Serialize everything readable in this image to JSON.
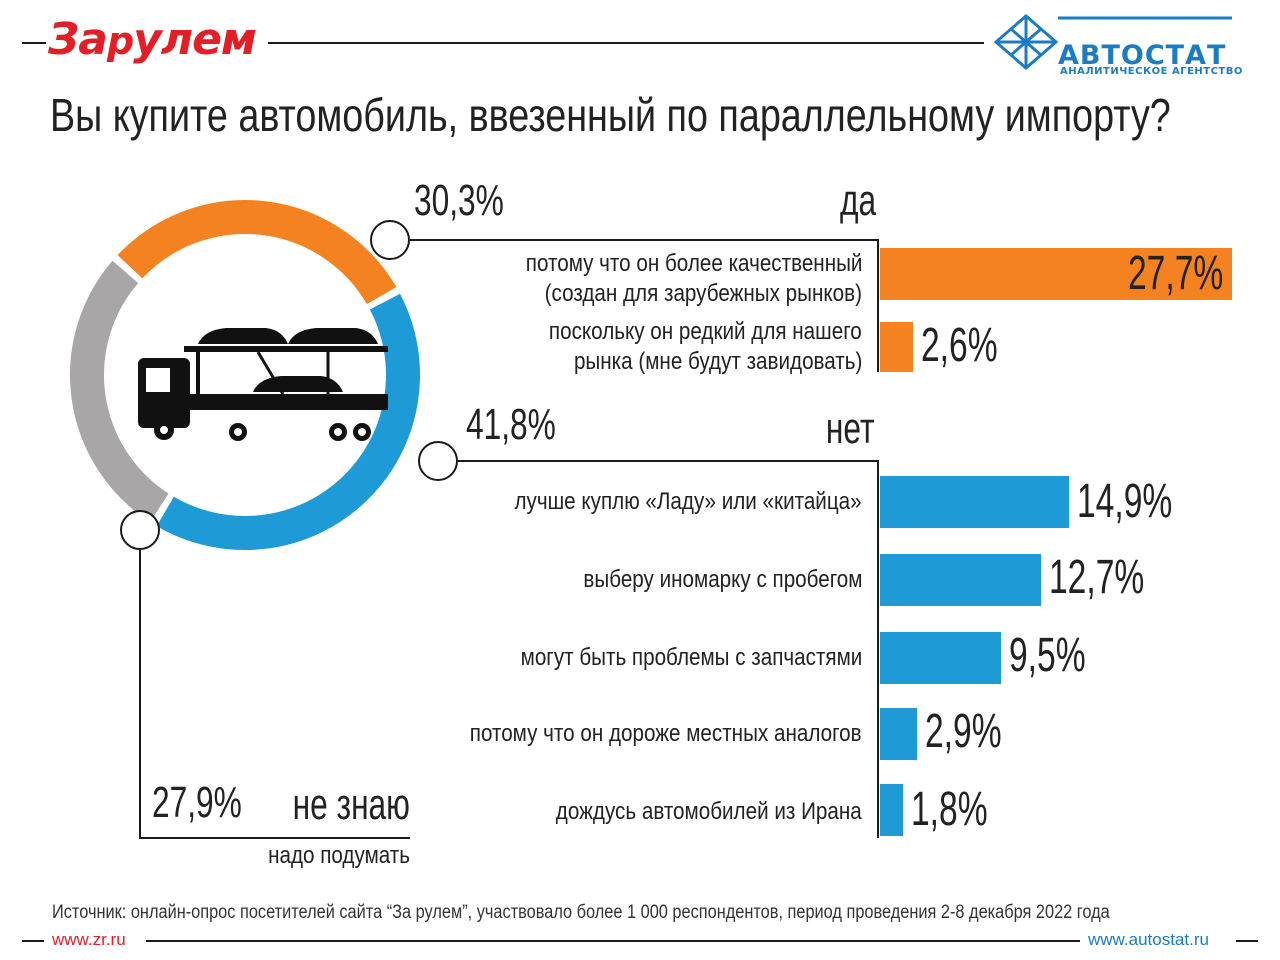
{
  "brand": {
    "zr_logo": "За рулем",
    "autostat_name": "АВТОСТАТ",
    "autostat_sub": "АНАЛИТИЧЕСКОЕ АГЕНТСТВО"
  },
  "title": "Вы купите автомобиль, ввезенный по параллельному импорту?",
  "colors": {
    "yes": "#f58220",
    "no": "#1e9ad6",
    "dont_know": "#a8a6a7",
    "accent_red": "#e41e26",
    "accent_blue": "#1b7cc4"
  },
  "chart_data": {
    "type": "pie",
    "slices": [
      {
        "label": "да",
        "value": 30.3,
        "value_label": "30,3%"
      },
      {
        "label": "нет",
        "value": 41.8,
        "value_label": "41,8%"
      },
      {
        "label": "не знаю",
        "value": 27.9,
        "value_label": "27,9%",
        "sublabel": "надо подумать"
      }
    ],
    "breakdown": {
      "type": "bar",
      "yes": [
        {
          "label": "потому что он более качественный (создан для зарубежных рынков)",
          "line1": "потому что он более качественный",
          "line2": "(создан для зарубежных рынков)",
          "value": 27.7,
          "value_label": "27,7%"
        },
        {
          "label": "поскольку он редкий для нашего рынка (мне будут завидовать)",
          "line1": "поскольку он редкий для нашего",
          "line2": "рынка (мне будут завидовать)",
          "value": 2.6,
          "value_label": "2,6%"
        }
      ],
      "no": [
        {
          "label": "лучше куплю «Ладу» или «китайца»",
          "value": 14.9,
          "value_label": "14,9%"
        },
        {
          "label": "выберу иномарку с пробегом",
          "value": 12.7,
          "value_label": "12,7%"
        },
        {
          "label": "могут быть проблемы с запчастями",
          "value": 9.5,
          "value_label": "9,5%"
        },
        {
          "label": "потому что он дороже местных аналогов",
          "value": 2.9,
          "value_label": "2,9%"
        },
        {
          "label": "дождусь автомобилей из Ирана",
          "value": 1.8,
          "value_label": "1,8%"
        }
      ]
    }
  },
  "source": "Источник: онлайн-опрос посетителей сайта “За рулем”, участвовало более 1 000 респондентов, период проведения 2-8 декабря 2022 года",
  "urls": {
    "left": "www.zr.ru",
    "right": "www.autostat.ru"
  }
}
